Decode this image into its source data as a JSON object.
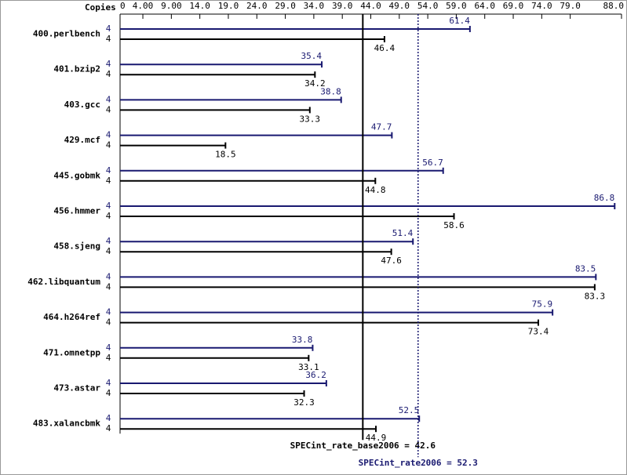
{
  "chart_data": {
    "type": "bar",
    "orientation": "horizontal",
    "copies_label": "Copies",
    "categories": [
      "400.perlbench",
      "401.bzip2",
      "403.gcc",
      "429.mcf",
      "445.gobmk",
      "456.hmmer",
      "458.sjeng",
      "462.libquantum",
      "464.h264ref",
      "471.omnetpp",
      "473.astar",
      "483.xalancbmk"
    ],
    "series": [
      {
        "color": "#191970",
        "copies": [
          4,
          4,
          4,
          4,
          4,
          4,
          4,
          4,
          4,
          4,
          4,
          4
        ],
        "values": [
          61.4,
          35.4,
          38.8,
          47.7,
          56.7,
          86.8,
          51.4,
          83.5,
          75.9,
          33.8,
          36.2,
          52.5
        ]
      },
      {
        "color": "#000000",
        "copies": [
          4,
          4,
          4,
          4,
          4,
          4,
          4,
          4,
          4,
          4,
          4,
          4
        ],
        "values": [
          46.4,
          34.2,
          33.3,
          18.5,
          44.8,
          58.6,
          47.6,
          83.3,
          73.4,
          33.1,
          32.3,
          44.9
        ]
      }
    ],
    "xlim": [
      0,
      88.0
    ],
    "xticks": [
      0,
      {
        "value": 4,
        "label": "4.00"
      },
      {
        "value": 9,
        "label": "9.00"
      },
      {
        "value": 14,
        "label": "14.0"
      },
      {
        "value": 19,
        "label": "19.0"
      },
      {
        "value": 24,
        "label": "24.0"
      },
      {
        "value": 29,
        "label": "29.0"
      },
      {
        "value": 34,
        "label": "34.0"
      },
      {
        "value": 39,
        "label": "39.0"
      },
      {
        "value": 44,
        "label": "44.0"
      },
      {
        "value": 49,
        "label": "49.0"
      },
      {
        "value": 54,
        "label": "54.0"
      },
      {
        "value": 59,
        "label": "59.0"
      },
      {
        "value": 64,
        "label": "64.0"
      },
      {
        "value": 69,
        "label": "69.0"
      },
      {
        "value": 74,
        "label": "74.0"
      },
      {
        "value": 79,
        "label": "79.0"
      },
      {
        "value": 88,
        "label": "88.0"
      }
    ],
    "reference_lines": [
      {
        "label": "SPECint_rate_base2006 = 42.6",
        "value": 42.6,
        "color": "#000000",
        "style": "solid"
      },
      {
        "label": "SPECint_rate2006 = 52.3",
        "value": 52.3,
        "color": "#191970",
        "style": "dotted"
      }
    ]
  }
}
